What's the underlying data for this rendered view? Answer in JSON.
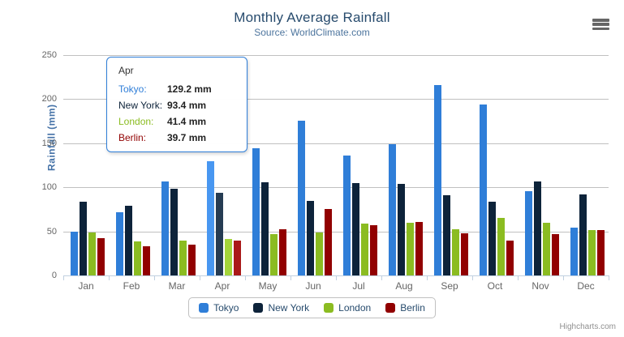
{
  "chart_data": {
    "type": "bar",
    "title": "Monthly Average Rainfall",
    "subtitle": "Source: WorldClimate.com",
    "categories": [
      "Jan",
      "Feb",
      "Mar",
      "Apr",
      "May",
      "Jun",
      "Jul",
      "Aug",
      "Sep",
      "Oct",
      "Nov",
      "Dec"
    ],
    "series": [
      {
        "name": "Tokyo",
        "color": "#2f7ed8",
        "hover_color": "#4897f1",
        "values": [
          49.9,
          71.5,
          106.4,
          129.2,
          144.0,
          176.0,
          135.6,
          148.5,
          216.4,
          194.1,
          95.6,
          54.4
        ]
      },
      {
        "name": "New York",
        "color": "#0d233a",
        "hover_color": "#263c53",
        "values": [
          83.6,
          78.8,
          98.5,
          93.4,
          106.0,
          84.5,
          105.0,
          104.3,
          91.2,
          83.5,
          106.6,
          92.3
        ]
      },
      {
        "name": "London",
        "color": "#8bbc21",
        "hover_color": "#a4d53a",
        "values": [
          48.9,
          38.8,
          39.3,
          41.4,
          47.0,
          48.3,
          59.0,
          59.6,
          52.4,
          65.2,
          59.3,
          51.2
        ]
      },
      {
        "name": "Berlin",
        "color": "#910000",
        "hover_color": "#aa1919",
        "values": [
          42.4,
          33.2,
          34.5,
          39.7,
          52.6,
          75.5,
          57.4,
          60.4,
          47.6,
          39.1,
          46.8,
          51.1
        ]
      }
    ],
    "xlabel": "",
    "ylabel": "Rainfall (mm)",
    "ylim": [
      0,
      250
    ],
    "yticks": [
      0,
      50,
      100,
      150,
      200,
      250
    ],
    "grid": true,
    "legend_position": "bottom"
  },
  "tooltip": {
    "category": "Apr",
    "header": "Apr",
    "rows": [
      {
        "label": "Tokyo:",
        "value": "129.2 mm",
        "color": "#2f7ed8"
      },
      {
        "label": "New York:",
        "value": "93.4 mm",
        "color": "#0d233a"
      },
      {
        "label": "London:",
        "value": "41.4 mm",
        "color": "#8bbc21"
      },
      {
        "label": "Berlin:",
        "value": "39.7 mm",
        "color": "#910000"
      }
    ]
  },
  "credits": {
    "text": "Highcharts.com"
  },
  "icons": {
    "export_menu": "hamburger-icon"
  },
  "colors": {
    "title": "#274b6d",
    "subtitle": "#4d759e",
    "axis_title": "#4572a7",
    "tick_label": "#666666",
    "grid_line": "#c0c0c0",
    "axis_line": "#c0d0e0",
    "legend_text": "#274b6d",
    "legend_border": "#c0c0c0",
    "credits": "#909090",
    "tooltip_border": "#2f7ed8",
    "menu_icon": "#666666"
  }
}
